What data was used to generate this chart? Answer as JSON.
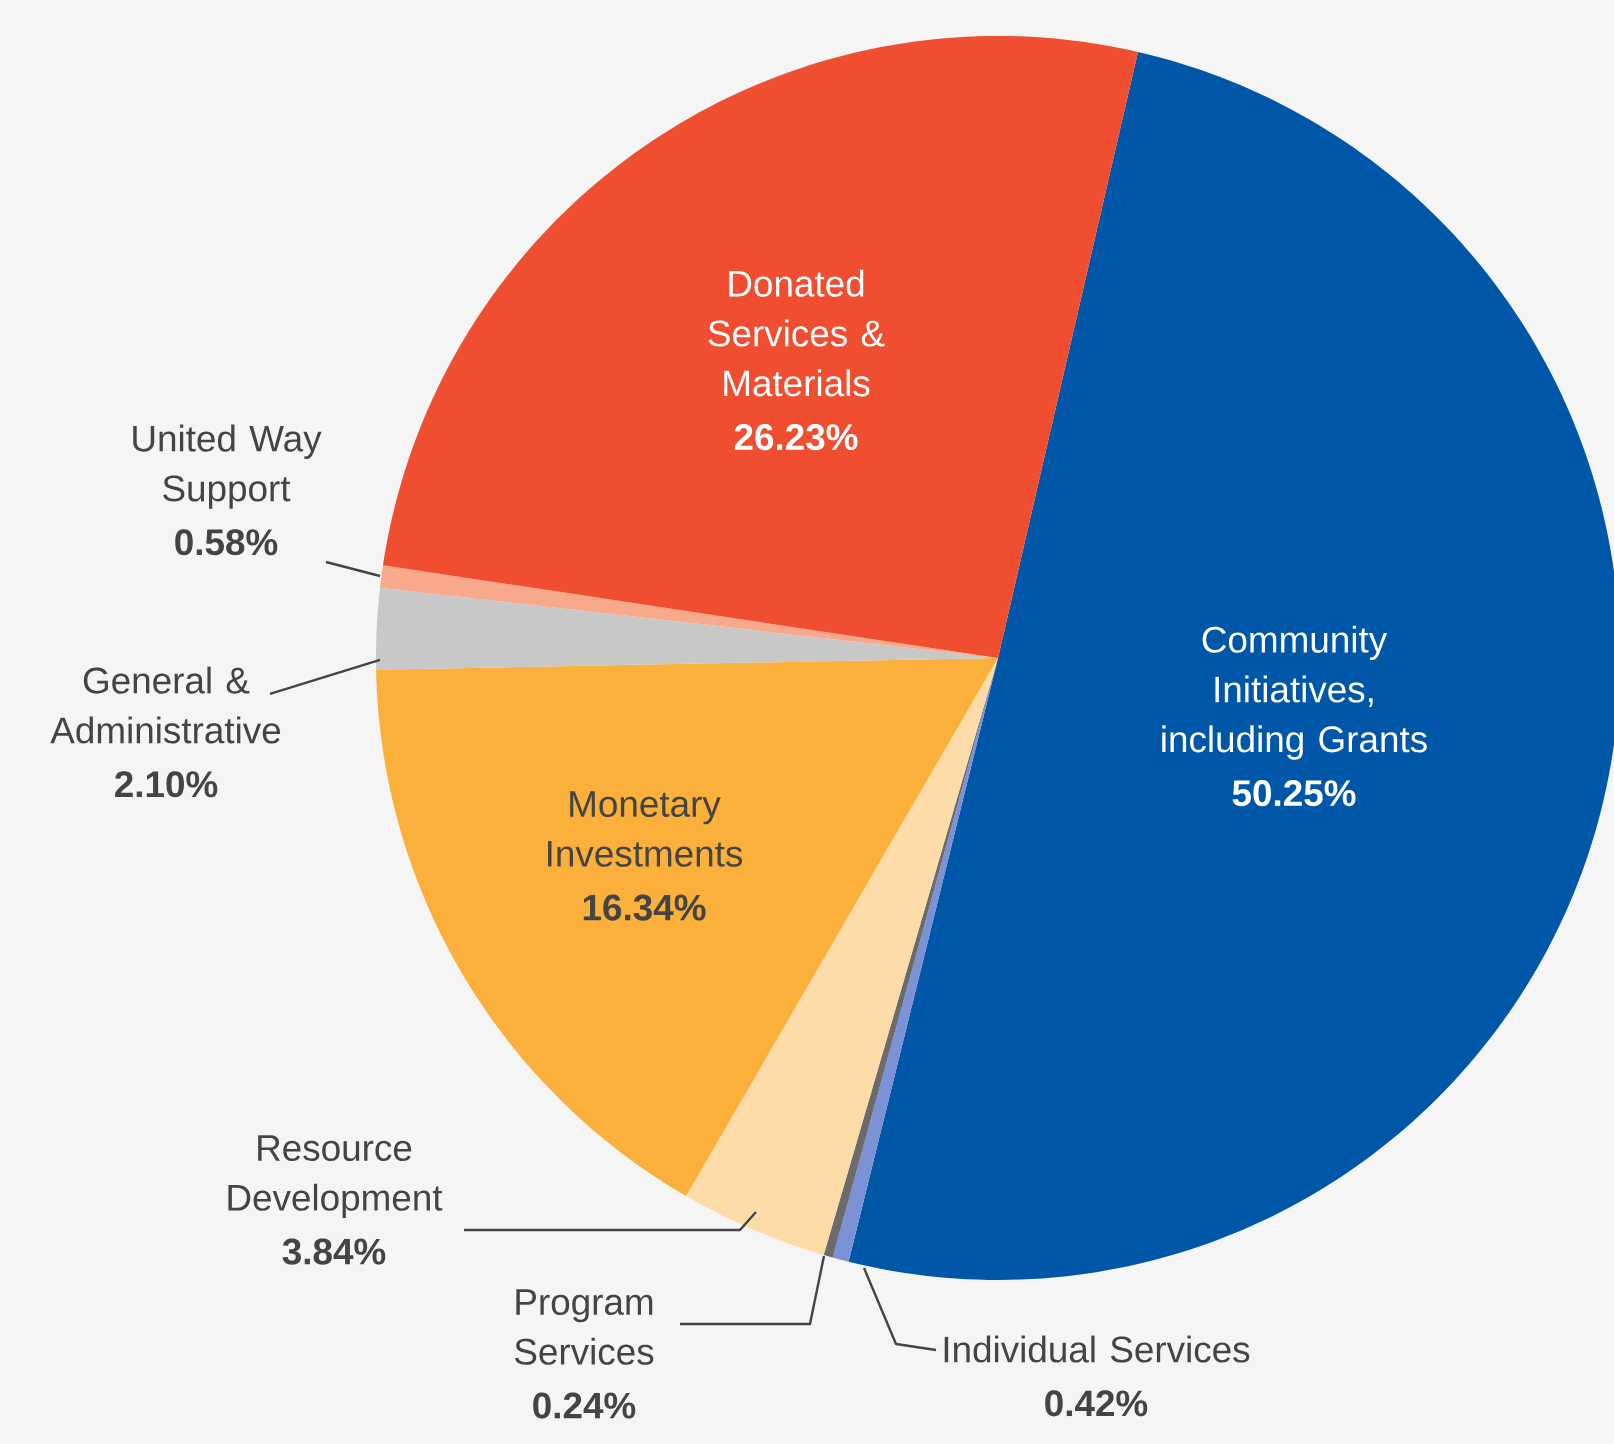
{
  "chart_data": {
    "type": "pie",
    "categories": [
      "Community Initiatives, including Grants",
      "Individual Services",
      "Program Services",
      "Resource Development",
      "Monetary Investments",
      "General & Administrative",
      "United Way Support",
      "Donated Services & Materials"
    ],
    "values": [
      50.25,
      0.42,
      0.24,
      3.84,
      16.34,
      2.1,
      0.58,
      26.23
    ],
    "value_labels": [
      "50.25%",
      "0.42%",
      "0.24%",
      "3.84%",
      "16.34%",
      "2.10%",
      "0.58%",
      "26.23%"
    ],
    "colors": [
      "#0057a8",
      "#7b93d6",
      "#6b6b6b",
      "#fddcaa",
      "#fbb03b",
      "#c8c8c8",
      "#f9a98b",
      "#f04e30"
    ]
  }
}
